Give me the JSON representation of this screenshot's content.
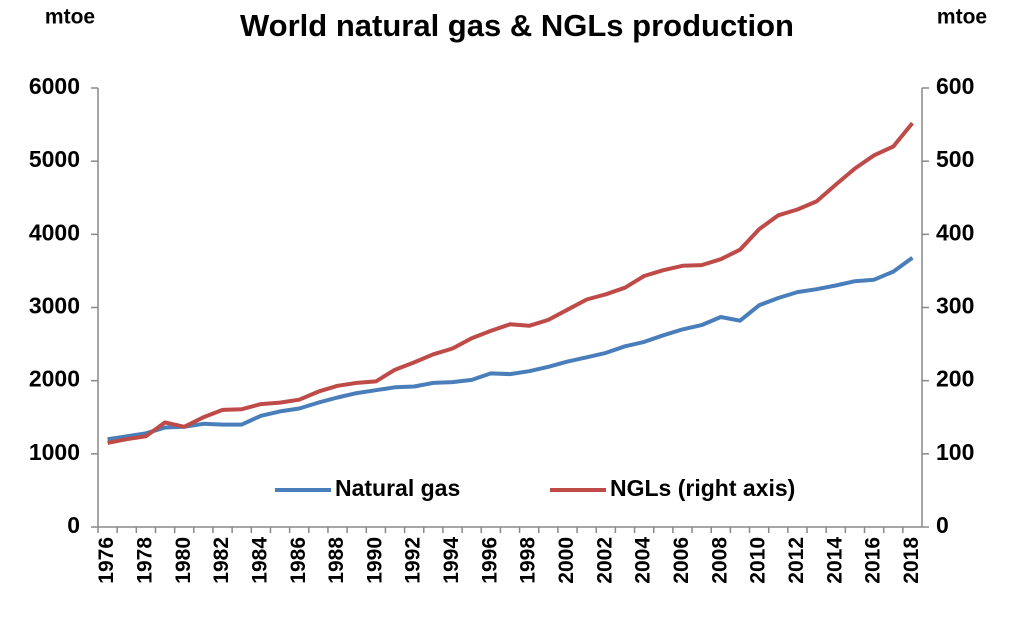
{
  "chart_data": {
    "type": "line",
    "title": "World natural gas & NGLs production",
    "y_label": "mtoe",
    "y2_label": "mtoe",
    "categories": [
      "1976",
      null,
      "1978",
      null,
      "1980",
      null,
      "1982",
      null,
      "1984",
      null,
      "1986",
      null,
      "1988",
      null,
      "1990",
      null,
      "1992",
      null,
      "1994",
      null,
      "1996",
      null,
      "1998",
      null,
      "2000",
      null,
      "2002",
      null,
      "2004",
      null,
      "2006",
      null,
      "2008",
      null,
      "2010",
      null,
      "2012",
      null,
      "2014",
      null,
      "2016",
      null,
      "2018"
    ],
    "series": [
      {
        "name": "Natural gas",
        "color": "#4a7ebb",
        "values": [
          1200,
          1240,
          1280,
          1360,
          1370,
          1410,
          1400,
          1400,
          1520,
          1580,
          1620,
          1700,
          1770,
          1830,
          1870,
          1910,
          1920,
          1970,
          1980,
          2010,
          2100,
          2090,
          2130,
          2190,
          2260,
          2320,
          2380,
          2470,
          2530,
          2620,
          2700,
          2760,
          2870,
          2820,
          3030,
          3130,
          3210,
          3250,
          3300,
          3360,
          3380,
          3490,
          3680
        ]
      },
      {
        "name": "NGLs (right axis)",
        "color": "#be4b48",
        "axis": "y2",
        "values": [
          115,
          120,
          124,
          143,
          137,
          150,
          160,
          161,
          168,
          170,
          174,
          185,
          193,
          197,
          199,
          215,
          225,
          236,
          244,
          258,
          268,
          277,
          275,
          283,
          297,
          311,
          318,
          327,
          343,
          351,
          357,
          358,
          366,
          379,
          407,
          426,
          434,
          445,
          468,
          490,
          508,
          520,
          552
        ]
      }
    ],
    "ylim": [
      0,
      6000
    ],
    "yticks": [
      0,
      1000,
      2000,
      3000,
      4000,
      5000,
      6000
    ],
    "y2lim": [
      0,
      600
    ],
    "y2ticks": [
      0,
      100,
      200,
      300,
      400,
      500,
      600
    ],
    "grid": false,
    "legend": "bottom"
  }
}
